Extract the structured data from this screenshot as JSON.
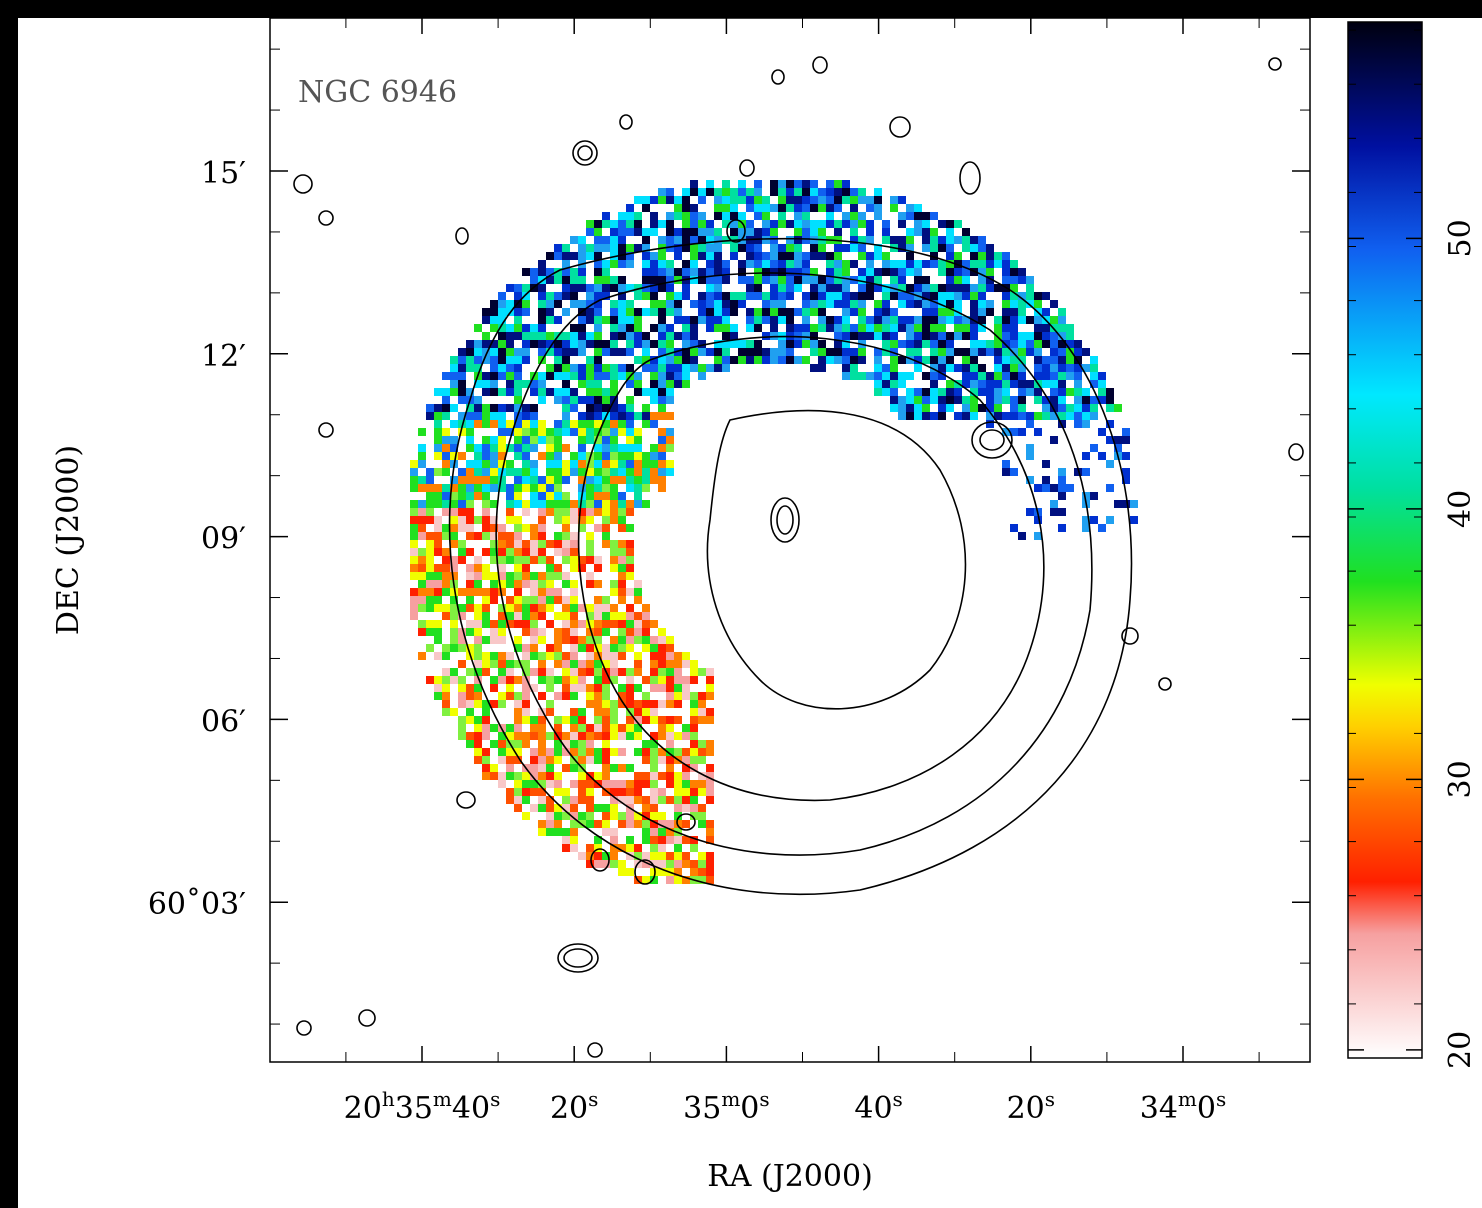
{
  "figure": {
    "label": "NGC 6946",
    "x_axis_title": "RA (J2000)",
    "y_axis_title": "DEC (J2000)",
    "x_ticks": [
      [
        "20",
        "h",
        "35",
        "m",
        "40",
        "s"
      ],
      [
        "20",
        "s"
      ],
      [
        "35",
        "m",
        "0",
        "s"
      ],
      [
        "40",
        "s"
      ],
      [
        "20",
        "s"
      ],
      [
        "34",
        "m",
        "0",
        "s"
      ]
    ],
    "y_ticks": [
      "15′",
      "12′",
      "09′",
      "06′",
      "60˚03′"
    ],
    "colorbar": {
      "lim": [
        19.7,
        58
      ],
      "ticks": [
        20,
        30,
        40,
        50
      ]
    }
  }
}
